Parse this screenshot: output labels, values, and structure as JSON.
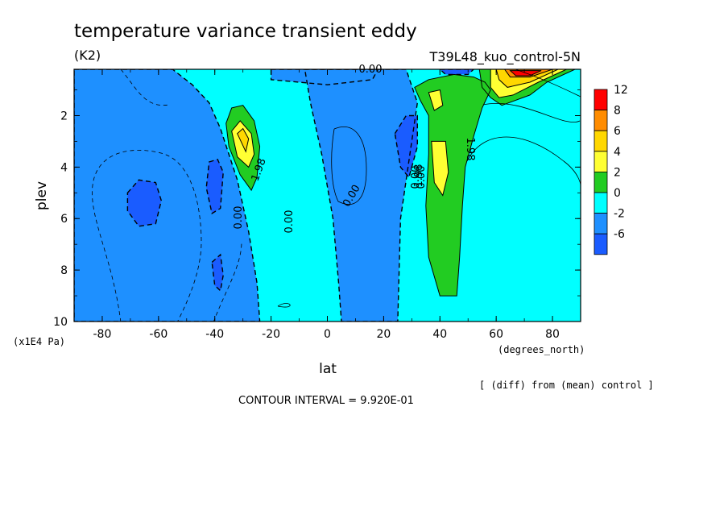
{
  "chart_data": {
    "type": "contour",
    "title": "temperature variance transient eddy",
    "units": "(K2)",
    "run_label": "T39L48_kuo_control-5N",
    "xlabel": "lat",
    "ylabel": "plev",
    "x_units": "(degrees_north)",
    "y_units": "(x1E4 Pa)",
    "xlim": [
      -90,
      90
    ],
    "ylim": [
      0.2,
      10
    ],
    "x_ticks": [
      -80,
      -60,
      -40,
      -20,
      0,
      20,
      40,
      60,
      80
    ],
    "y_ticks": [
      2,
      4,
      6,
      8,
      10
    ],
    "note": "[ (diff) from (mean) control ]",
    "contour_interval": "CONTOUR INTERVAL = 9.920E-01",
    "contour_labels": [
      "0.00",
      "0.00",
      "0.00",
      "0.00",
      "0.00",
      "0.00",
      "1.98",
      "1.98",
      "1.98"
    ],
    "colorbar": {
      "levels": [
        "12",
        "8",
        "6",
        "4",
        "2",
        "0",
        "-2",
        "-6"
      ],
      "colors": [
        "#ff0000",
        "#ff8c00",
        "#ffd700",
        "#ffff33",
        "#22cc22",
        "#00ffff",
        "#1e90ff",
        "#1a5cff"
      ]
    },
    "field_colors": {
      "neg": "#1e90ff",
      "neg2": "#1a5cff",
      "zero": "#00ffff",
      "pos2": "#22cc22",
      "pos4": "#ffff33",
      "pos6": "#ffd700",
      "pos8": "#ff8c00",
      "pos12": "#ff0000"
    },
    "regions": [
      {
        "name": "sh-negative",
        "level": "neg",
        "points": [
          [
            -90,
            0.2
          ],
          [
            -55,
            0.2
          ],
          [
            -48,
            0.8
          ],
          [
            -42,
            1.5
          ],
          [
            -38,
            2.5
          ],
          [
            -32,
            4.5
          ],
          [
            -28,
            6.5
          ],
          [
            -25,
            8.5
          ],
          [
            -24,
            10
          ],
          [
            -90,
            10
          ]
        ]
      },
      {
        "name": "tropical-negative",
        "level": "neg",
        "points": [
          [
            -8,
            0.2
          ],
          [
            28,
            0.2
          ],
          [
            32,
            1.5
          ],
          [
            30,
            3
          ],
          [
            26,
            6
          ],
          [
            25,
            10
          ],
          [
            5,
            10
          ],
          [
            4,
            8.5
          ],
          [
            2,
            6
          ],
          [
            -2,
            3.5
          ],
          [
            -6,
            1.5
          ]
        ]
      },
      {
        "name": "nh-positive",
        "level": "pos2",
        "points": [
          [
            31,
            0.9
          ],
          [
            36,
            0.6
          ],
          [
            45,
            0.4
          ],
          [
            52,
            0.5
          ],
          [
            56,
            0.7
          ],
          [
            58,
            1
          ],
          [
            55,
            1.7
          ],
          [
            52,
            2.8
          ],
          [
            49,
            4
          ],
          [
            48,
            5.5
          ],
          [
            47,
            7.5
          ],
          [
            46,
            9
          ],
          [
            40,
            9
          ],
          [
            36,
            7.5
          ],
          [
            35,
            5.5
          ],
          [
            36,
            3.5
          ],
          [
            36,
            2
          ],
          [
            33,
            1.4
          ]
        ]
      },
      {
        "name": "nh-pos4-a",
        "level": "pos4",
        "points": [
          [
            37,
            3
          ],
          [
            42,
            3
          ],
          [
            43,
            4.2
          ],
          [
            41,
            5.1
          ],
          [
            38,
            4.6
          ]
        ]
      },
      {
        "name": "nh-pos4-b",
        "level": "pos4",
        "points": [
          [
            36,
            1.1
          ],
          [
            40,
            1
          ],
          [
            41,
            1.6
          ],
          [
            38,
            1.8
          ]
        ]
      },
      {
        "name": "nh-top-positive",
        "level": "pos2",
        "points": [
          [
            54,
            0.2
          ],
          [
            88,
            0.2
          ],
          [
            78,
            0.7
          ],
          [
            72,
            1.2
          ],
          [
            62,
            1.6
          ],
          [
            58,
            1.3
          ],
          [
            55,
            0.9
          ]
        ]
      },
      {
        "name": "nh-top-pos4",
        "level": "pos4",
        "points": [
          [
            58,
            0.2
          ],
          [
            85,
            0.2
          ],
          [
            75,
            0.7
          ],
          [
            66,
            1.2
          ],
          [
            61,
            1.3
          ],
          [
            58,
            0.9
          ]
        ]
      },
      {
        "name": "nh-top-pos6",
        "level": "pos6",
        "points": [
          [
            60,
            0.2
          ],
          [
            82,
            0.2
          ],
          [
            72,
            0.7
          ],
          [
            64,
            0.9
          ],
          [
            61,
            0.6
          ]
        ]
      },
      {
        "name": "nh-top-pos8",
        "level": "pos8",
        "points": [
          [
            63,
            0.2
          ],
          [
            80,
            0.2
          ],
          [
            72,
            0.5
          ],
          [
            65,
            0.5
          ]
        ]
      },
      {
        "name": "nh-top-pos12",
        "level": "pos12",
        "points": [
          [
            65,
            0.25
          ],
          [
            76,
            0.25
          ],
          [
            72,
            0.45
          ],
          [
            67,
            0.45
          ]
        ]
      },
      {
        "name": "sh-positive",
        "level": "pos2",
        "points": [
          [
            -36,
            2.3
          ],
          [
            -34,
            1.7
          ],
          [
            -30,
            1.6
          ],
          [
            -26,
            2.2
          ],
          [
            -24,
            3.2
          ],
          [
            -25,
            4.4
          ],
          [
            -27,
            4.9
          ],
          [
            -31,
            4.3
          ],
          [
            -35,
            3.2
          ]
        ]
      },
      {
        "name": "sh-pos4",
        "level": "pos4",
        "points": [
          [
            -34,
            2.6
          ],
          [
            -31,
            2.2
          ],
          [
            -27,
            2.7
          ],
          [
            -26,
            3.5
          ],
          [
            -28,
            4
          ],
          [
            -32,
            3.6
          ]
        ]
      },
      {
        "name": "sh-pos6",
        "level": "pos6",
        "points": [
          [
            -32,
            2.7
          ],
          [
            -30,
            2.5
          ],
          [
            -28,
            2.9
          ],
          [
            -29,
            3.4
          ]
        ]
      },
      {
        "name": "neg2-a",
        "level": "neg2",
        "points": [
          [
            -71,
            5
          ],
          [
            -67,
            4.5
          ],
          [
            -61,
            4.6
          ],
          [
            -59,
            5.3
          ],
          [
            -61,
            6.2
          ],
          [
            -67,
            6.3
          ],
          [
            -71,
            5.7
          ]
        ]
      },
      {
        "name": "neg2-b",
        "level": "neg2",
        "points": [
          [
            -42,
            3.8
          ],
          [
            -39,
            3.7
          ],
          [
            -37,
            4.2
          ],
          [
            -38,
            5.6
          ],
          [
            -41,
            5.8
          ],
          [
            -43,
            4.8
          ]
        ]
      },
      {
        "name": "neg2-c",
        "level": "neg2",
        "points": [
          [
            -41,
            7.7
          ],
          [
            -38,
            7.4
          ],
          [
            -37,
            8.2
          ],
          [
            -38,
            8.8
          ],
          [
            -40,
            8.6
          ]
        ]
      },
      {
        "name": "neg2-d",
        "level": "neg2",
        "points": [
          [
            24,
            2.7
          ],
          [
            28,
            2
          ],
          [
            32,
            2
          ],
          [
            32,
            3.2
          ],
          [
            29,
            4.4
          ],
          [
            26,
            4
          ]
        ]
      },
      {
        "name": "nh-top-neg",
        "level": "neg",
        "points": [
          [
            -20,
            0.2
          ],
          [
            18,
            0.2
          ],
          [
            16,
            0.6
          ],
          [
            0,
            0.8
          ],
          [
            -20,
            0.6
          ]
        ]
      },
      {
        "name": "nh-top-neg2",
        "level": "neg2",
        "points": [
          [
            40,
            0.2
          ],
          [
            52,
            0.2
          ],
          [
            50,
            0.4
          ],
          [
            42,
            0.4
          ]
        ]
      }
    ]
  }
}
